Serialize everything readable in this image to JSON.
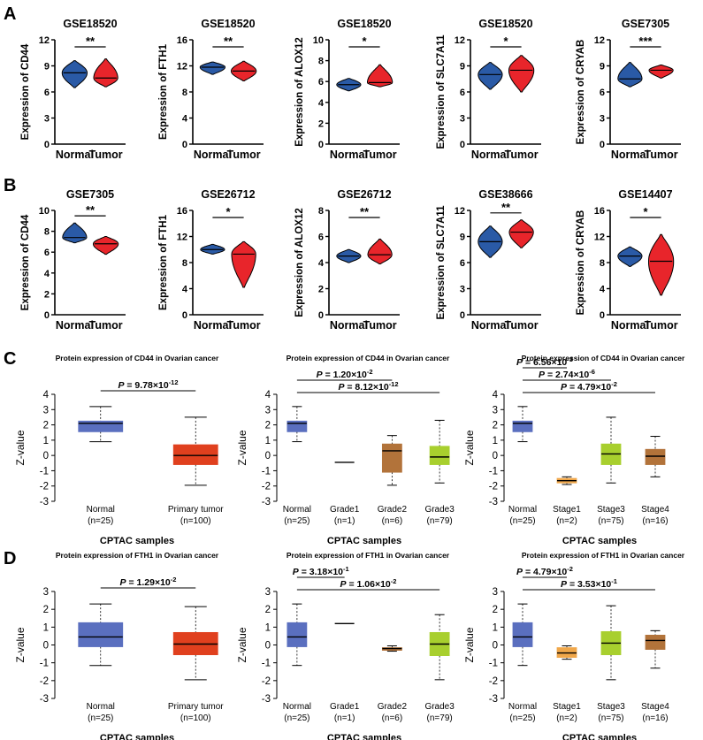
{
  "colors": {
    "normal": "#2a5aa6",
    "tumor": "#e8252b",
    "box_normal": "#5a6fbf",
    "box_primary": "#e0401e",
    "grade_brown": "#b2733a",
    "lime": "#a8cf2e",
    "stage_orange": "#f0a74a"
  },
  "panels": {
    "A": {
      "letter": "A"
    },
    "B": {
      "letter": "B"
    },
    "C": {
      "letter": "C"
    },
    "D": {
      "letter": "D"
    }
  },
  "chart_data": [
    {
      "id": "A1",
      "type": "violin",
      "title": "GSE18520",
      "ylabel": "Expression of CD44",
      "ylim": [
        0,
        12
      ],
      "yticks": [
        0,
        3,
        6,
        9,
        12
      ],
      "categories": [
        "Normal",
        "Tumor"
      ],
      "sig": "**",
      "series": [
        {
          "name": "Normal",
          "median": 8.2,
          "min": 6.5,
          "max": 9.6,
          "spread": 0.85
        },
        {
          "name": "Tumor",
          "median": 7.6,
          "min": 6.6,
          "max": 9.8,
          "spread": 0.8
        }
      ]
    },
    {
      "id": "A2",
      "type": "violin",
      "title": "GSE18520",
      "ylabel": "Expression of FTH1",
      "ylim": [
        0,
        16
      ],
      "yticks": [
        0,
        4,
        8,
        12,
        16
      ],
      "categories": [
        "Normal",
        "Tumor"
      ],
      "sig": "**",
      "series": [
        {
          "name": "Normal",
          "median": 11.8,
          "min": 10.7,
          "max": 12.6,
          "spread": 0.85
        },
        {
          "name": "Tumor",
          "median": 11.2,
          "min": 9.7,
          "max": 12.7,
          "spread": 0.85
        }
      ]
    },
    {
      "id": "A3",
      "type": "violin",
      "title": "GSE18520",
      "ylabel": "Expression of ALOX12",
      "ylim": [
        0,
        10
      ],
      "yticks": [
        0,
        2,
        4,
        6,
        8,
        10
      ],
      "categories": [
        "Normal",
        "Tumor"
      ],
      "sig": "*",
      "series": [
        {
          "name": "Normal",
          "median": 5.7,
          "min": 5.1,
          "max": 6.3,
          "spread": 0.8
        },
        {
          "name": "Tumor",
          "median": 5.9,
          "min": 5.5,
          "max": 7.6,
          "spread": 0.85
        }
      ]
    },
    {
      "id": "A4",
      "type": "violin",
      "title": "GSE18520",
      "ylabel": "Expression of SLC7A11",
      "ylim": [
        0,
        12
      ],
      "yticks": [
        0,
        3,
        6,
        9,
        12
      ],
      "categories": [
        "Normal",
        "Tumor"
      ],
      "sig": "*",
      "series": [
        {
          "name": "Normal",
          "median": 8.0,
          "min": 6.3,
          "max": 9.4,
          "spread": 0.8
        },
        {
          "name": "Tumor",
          "median": 8.5,
          "min": 6.0,
          "max": 10.2,
          "spread": 0.85
        }
      ]
    },
    {
      "id": "A5",
      "type": "violin",
      "title": "GSE7305",
      "ylabel": "Expression of CRYAB",
      "ylim": [
        0,
        12
      ],
      "yticks": [
        0,
        3,
        6,
        9,
        12
      ],
      "categories": [
        "Normal",
        "Tumor"
      ],
      "sig": "***",
      "series": [
        {
          "name": "Normal",
          "median": 7.5,
          "min": 6.6,
          "max": 9.4,
          "spread": 0.8
        },
        {
          "name": "Tumor",
          "median": 8.5,
          "min": 7.6,
          "max": 9.1,
          "spread": 0.8
        }
      ]
    },
    {
      "id": "B1",
      "type": "violin",
      "title": "GSE7305",
      "ylabel": "Expression of CD44",
      "ylim": [
        0,
        10
      ],
      "yticks": [
        0,
        2,
        4,
        6,
        8,
        10
      ],
      "categories": [
        "Normal",
        "Tumor"
      ],
      "sig": "**",
      "series": [
        {
          "name": "Normal",
          "median": 7.4,
          "min": 6.9,
          "max": 8.8,
          "spread": 0.8
        },
        {
          "name": "Tumor",
          "median": 6.8,
          "min": 5.8,
          "max": 7.5,
          "spread": 0.85
        }
      ]
    },
    {
      "id": "B2",
      "type": "violin",
      "title": "GSE26712",
      "ylabel": "Expression of FTH1",
      "ylim": [
        0,
        16
      ],
      "yticks": [
        0,
        4,
        8,
        12,
        16
      ],
      "categories": [
        "Normal",
        "Tumor"
      ],
      "sig": "*",
      "series": [
        {
          "name": "Normal",
          "median": 10.0,
          "min": 9.3,
          "max": 10.8,
          "spread": 0.8
        },
        {
          "name": "Tumor",
          "median": 9.3,
          "min": 4.2,
          "max": 11.2,
          "spread": 0.8
        }
      ]
    },
    {
      "id": "B3",
      "type": "violin",
      "title": "GSE26712",
      "ylabel": "Expression of ALOX12",
      "ylim": [
        0,
        8
      ],
      "yticks": [
        0,
        2,
        4,
        6,
        8
      ],
      "categories": [
        "Normal",
        "Tumor"
      ],
      "sig": "**",
      "series": [
        {
          "name": "Normal",
          "median": 4.5,
          "min": 4.0,
          "max": 5.0,
          "spread": 0.8
        },
        {
          "name": "Tumor",
          "median": 4.6,
          "min": 3.9,
          "max": 5.8,
          "spread": 0.8
        }
      ]
    },
    {
      "id": "B4",
      "type": "violin",
      "title": "GSE38666",
      "ylabel": "Expression of SLC7A11",
      "ylim": [
        0,
        12
      ],
      "yticks": [
        0,
        3,
        6,
        9,
        12
      ],
      "categories": [
        "Normal",
        "Tumor"
      ],
      "sig": "**",
      "series": [
        {
          "name": "Normal",
          "median": 8.4,
          "min": 6.6,
          "max": 10.2,
          "spread": 0.8
        },
        {
          "name": "Tumor",
          "median": 9.5,
          "min": 7.7,
          "max": 10.9,
          "spread": 0.8
        }
      ]
    },
    {
      "id": "B5",
      "type": "violin",
      "title": "GSE14407",
      "ylabel": "Expression of CRYAB",
      "ylim": [
        0,
        16
      ],
      "yticks": [
        0,
        4,
        8,
        12,
        16
      ],
      "categories": [
        "Normal",
        "Tumor"
      ],
      "sig": "*",
      "series": [
        {
          "name": "Normal",
          "median": 9.0,
          "min": 7.4,
          "max": 10.4,
          "spread": 0.8
        },
        {
          "name": "Tumor",
          "median": 8.2,
          "min": 3.0,
          "max": 12.3,
          "spread": 0.85
        }
      ]
    },
    {
      "id": "C1",
      "type": "boxplot",
      "title": "Protein expression of CD44 in Ovarian cancer",
      "ylabel": "Z-value",
      "xlabel": "CPTAC samples",
      "ylim": [
        -3,
        4
      ],
      "yticks": [
        -3,
        -2,
        -1,
        0,
        1,
        2,
        3,
        4
      ],
      "categories": [
        "Normal",
        "Primary tumor"
      ],
      "counts": [
        "(n=25)",
        "(n=100)"
      ],
      "boxes": [
        {
          "q1": 1.55,
          "median": 2.1,
          "q3": 2.25,
          "wlo": 0.9,
          "whi": 3.2,
          "color": "box_normal"
        },
        {
          "q1": -0.6,
          "median": 0.0,
          "q3": 0.7,
          "wlo": -1.95,
          "whi": 2.5,
          "color": "box_primary"
        }
      ],
      "comparisons": [
        {
          "from": 0,
          "to": 1,
          "label": "P = 9.78×10",
          "exp": "-12"
        }
      ]
    },
    {
      "id": "C2",
      "type": "boxplot",
      "title": "Protein expression of CD44 in Ovarian cancer",
      "ylabel": "Z-value",
      "xlabel": "CPTAC samples",
      "ylim": [
        -3,
        4
      ],
      "yticks": [
        -3,
        -2,
        -1,
        0,
        1,
        2,
        3,
        4
      ],
      "categories": [
        "Normal",
        "Grade1",
        "Grade2",
        "Grade3"
      ],
      "counts": [
        "(n=25)",
        "(n=1)",
        "(n=6)",
        "(n=79)"
      ],
      "boxes": [
        {
          "q1": 1.55,
          "median": 2.1,
          "q3": 2.25,
          "wlo": 0.9,
          "whi": 3.2,
          "color": "box_normal"
        },
        {
          "q1": -0.45,
          "median": -0.45,
          "q3": -0.45,
          "wlo": -0.45,
          "whi": -0.45,
          "color": "grade_brown"
        },
        {
          "q1": -1.1,
          "median": 0.3,
          "q3": 0.75,
          "wlo": -1.95,
          "whi": 1.3,
          "color": "grade_brown"
        },
        {
          "q1": -0.6,
          "median": -0.1,
          "q3": 0.6,
          "wlo": -1.8,
          "whi": 2.3,
          "color": "lime"
        }
      ],
      "comparisons": [
        {
          "from": 0,
          "to": 2,
          "label": "P = 1.20×10",
          "exp": "-2"
        },
        {
          "from": 0,
          "to": 3,
          "label": "P = 8.12×10",
          "exp": "-12"
        }
      ]
    },
    {
      "id": "C3",
      "type": "boxplot",
      "title": "Protein expression of CD44 in Ovarian cancer",
      "ylabel": "Z-value",
      "xlabel": "CPTAC samples",
      "ylim": [
        -3,
        4
      ],
      "yticks": [
        -3,
        -2,
        -1,
        0,
        1,
        2,
        3,
        4
      ],
      "categories": [
        "Normal",
        "Stage1",
        "Stage3",
        "Stage4"
      ],
      "counts": [
        "(n=25)",
        "(n=2)",
        "(n=75)",
        "(n=16)"
      ],
      "boxes": [
        {
          "q1": 1.55,
          "median": 2.1,
          "q3": 2.25,
          "wlo": 0.9,
          "whi": 3.2,
          "color": "box_normal"
        },
        {
          "q1": -1.8,
          "median": -1.65,
          "q3": -1.5,
          "wlo": -1.9,
          "whi": -1.4,
          "color": "stage_orange"
        },
        {
          "q1": -0.6,
          "median": 0.1,
          "q3": 0.75,
          "wlo": -1.8,
          "whi": 2.5,
          "color": "lime"
        },
        {
          "q1": -0.6,
          "median": -0.05,
          "q3": 0.4,
          "wlo": -1.4,
          "whi": 1.25,
          "color": "grade_brown"
        }
      ],
      "comparisons": [
        {
          "from": 0,
          "to": 1,
          "label": "P = 6.56×10",
          "exp": "-3"
        },
        {
          "from": 0,
          "to": 2,
          "label": "P = 2.74×10",
          "exp": "-6"
        },
        {
          "from": 0,
          "to": 3,
          "label": "P = 4.79×10",
          "exp": "-2"
        }
      ]
    },
    {
      "id": "D1",
      "type": "boxplot",
      "title": "Protein expression of FTH1 in Ovarian cancer",
      "ylabel": "Z-value",
      "xlabel": "CPTAC samples",
      "ylim": [
        -3,
        3
      ],
      "yticks": [
        -3,
        -2,
        -1,
        0,
        1,
        2,
        3
      ],
      "categories": [
        "Normal",
        "Primary tumor"
      ],
      "counts": [
        "(n=25)",
        "(n=100)"
      ],
      "boxes": [
        {
          "q1": -0.1,
          "median": 0.45,
          "q3": 1.25,
          "wlo": -1.15,
          "whi": 2.3,
          "color": "box_normal"
        },
        {
          "q1": -0.55,
          "median": 0.05,
          "q3": 0.7,
          "wlo": -1.95,
          "whi": 2.15,
          "color": "box_primary"
        }
      ],
      "comparisons": [
        {
          "from": 0,
          "to": 1,
          "label": "P = 1.29×10",
          "exp": "-2"
        }
      ]
    },
    {
      "id": "D2",
      "type": "boxplot",
      "title": "Protein expression of FTH1 in Ovarian cancer",
      "ylabel": "Z-value",
      "xlabel": "CPTAC samples",
      "ylim": [
        -3,
        3
      ],
      "yticks": [
        -3,
        -2,
        -1,
        0,
        1,
        2,
        3
      ],
      "categories": [
        "Normal",
        "Grade1",
        "Grade2",
        "Grade3"
      ],
      "counts": [
        "(n=25)",
        "(n=1)",
        "(n=6)",
        "(n=79)"
      ],
      "boxes": [
        {
          "q1": -0.1,
          "median": 0.45,
          "q3": 1.25,
          "wlo": -1.15,
          "whi": 2.3,
          "color": "box_normal"
        },
        {
          "q1": 1.2,
          "median": 1.2,
          "q3": 1.2,
          "wlo": 1.2,
          "whi": 1.2,
          "color": "grade_brown"
        },
        {
          "q1": -0.3,
          "median": -0.2,
          "q3": -0.15,
          "wlo": -0.35,
          "whi": -0.05,
          "color": "grade_brown"
        },
        {
          "q1": -0.6,
          "median": 0.05,
          "q3": 0.7,
          "wlo": -1.95,
          "whi": 1.7,
          "color": "lime"
        }
      ],
      "comparisons": [
        {
          "from": 0,
          "to": 1,
          "label": "P = 3.18×10",
          "exp": "-1"
        },
        {
          "from": 0,
          "to": 3,
          "label": "P = 1.06×10",
          "exp": "-2"
        }
      ]
    },
    {
      "id": "D3",
      "type": "boxplot",
      "title": "Protein expression of FTH1 in Ovarian cancer",
      "ylabel": "Z-value",
      "xlabel": "CPTAC samples",
      "ylim": [
        -3,
        3
      ],
      "yticks": [
        -3,
        -2,
        -1,
        0,
        1,
        2,
        3
      ],
      "categories": [
        "Normal",
        "Stage1",
        "Stage3",
        "Stage4"
      ],
      "counts": [
        "(n=25)",
        "(n=2)",
        "(n=75)",
        "(n=16)"
      ],
      "boxes": [
        {
          "q1": -0.1,
          "median": 0.45,
          "q3": 1.25,
          "wlo": -1.15,
          "whi": 2.3,
          "color": "box_normal"
        },
        {
          "q1": -0.7,
          "median": -0.45,
          "q3": -0.15,
          "wlo": -0.8,
          "whi": -0.05,
          "color": "stage_orange"
        },
        {
          "q1": -0.55,
          "median": 0.1,
          "q3": 0.75,
          "wlo": -1.95,
          "whi": 2.2,
          "color": "lime"
        },
        {
          "q1": -0.25,
          "median": 0.25,
          "q3": 0.55,
          "wlo": -1.3,
          "whi": 0.8,
          "color": "grade_brown"
        }
      ],
      "comparisons": [
        {
          "from": 0,
          "to": 1,
          "label": "P = 4.79×10",
          "exp": "-2"
        },
        {
          "from": 0,
          "to": 3,
          "label": "P = 3.53×10",
          "exp": "-1"
        }
      ]
    }
  ]
}
